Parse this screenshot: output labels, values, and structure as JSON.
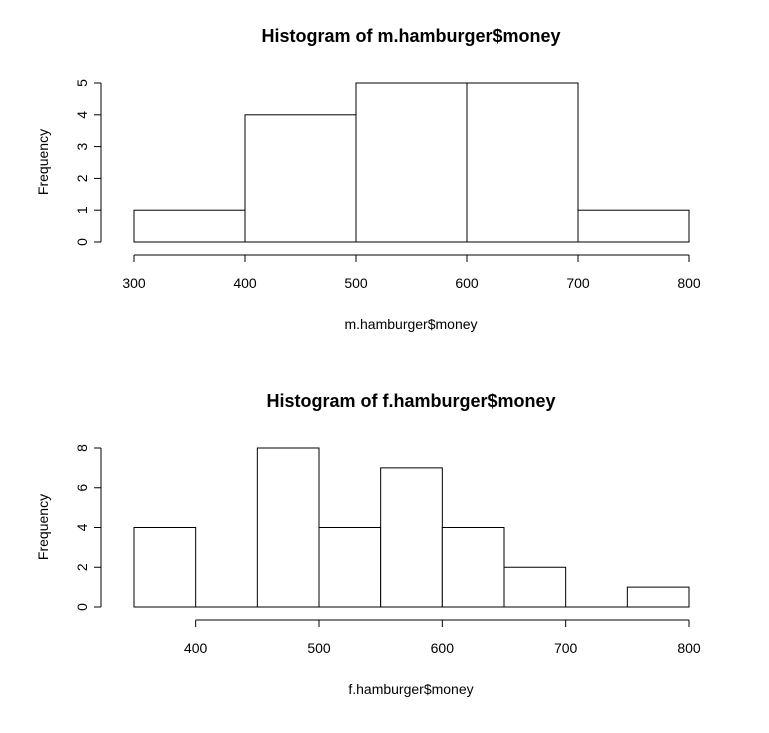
{
  "chart_data": [
    {
      "type": "bar",
      "title": "Histogram of m.hamburger$money",
      "xlabel": "m.hamburger$money",
      "ylabel": "Frequency",
      "bins": [
        {
          "from": 300,
          "to": 400,
          "count": 1
        },
        {
          "from": 400,
          "to": 500,
          "count": 4
        },
        {
          "from": 500,
          "to": 600,
          "count": 5
        },
        {
          "from": 600,
          "to": 700,
          "count": 5
        },
        {
          "from": 700,
          "to": 800,
          "count": 1
        }
      ],
      "xlim": [
        300,
        800
      ],
      "ylim": [
        0,
        5
      ],
      "xticks": [
        300,
        400,
        500,
        600,
        700,
        800
      ],
      "yticks": [
        0,
        1,
        2,
        3,
        4,
        5
      ],
      "grid": false
    },
    {
      "type": "bar",
      "title": "Histogram of f.hamburger$money",
      "xlabel": "f.hamburger$money",
      "ylabel": "Frequency",
      "bins": [
        {
          "from": 350,
          "to": 400,
          "count": 4
        },
        {
          "from": 400,
          "to": 450,
          "count": 0
        },
        {
          "from": 450,
          "to": 500,
          "count": 8
        },
        {
          "from": 500,
          "to": 550,
          "count": 4
        },
        {
          "from": 550,
          "to": 600,
          "count": 7
        },
        {
          "from": 600,
          "to": 650,
          "count": 4
        },
        {
          "from": 650,
          "to": 700,
          "count": 2
        },
        {
          "from": 700,
          "to": 750,
          "count": 0
        },
        {
          "from": 750,
          "to": 800,
          "count": 1
        }
      ],
      "xlim": [
        350,
        800
      ],
      "ylim": [
        0,
        8
      ],
      "xticks": [
        400,
        500,
        600,
        700,
        800
      ],
      "yticks": [
        0,
        2,
        4,
        6,
        8
      ],
      "grid": false
    }
  ]
}
